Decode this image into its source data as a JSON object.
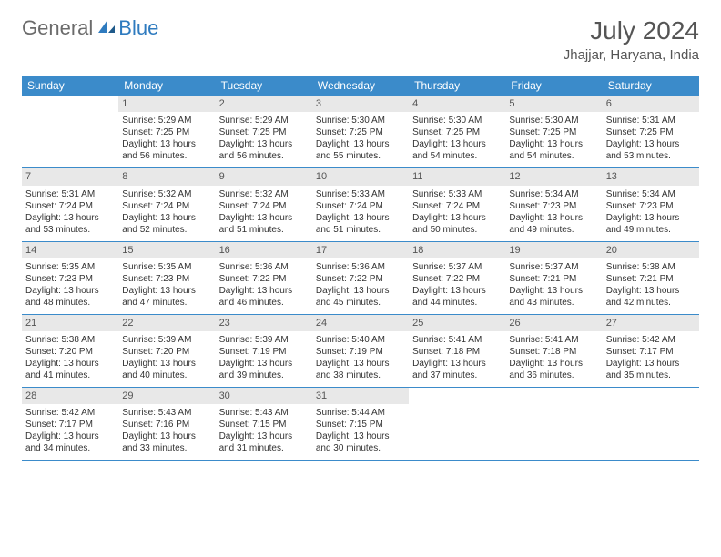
{
  "logo": {
    "general": "General",
    "blue": "Blue"
  },
  "title": "July 2024",
  "location": "Jhajjar, Haryana, India",
  "day_headers": [
    "Sunday",
    "Monday",
    "Tuesday",
    "Wednesday",
    "Thursday",
    "Friday",
    "Saturday"
  ],
  "colors": {
    "header_bg": "#3b8bca",
    "header_fg": "#ffffff",
    "daynum_bg": "#e8e8e8",
    "border": "#3b8bca",
    "logo_gray": "#6b6b6b",
    "logo_blue": "#2f7bbf"
  },
  "weeks": [
    [
      {
        "n": "",
        "sr": "",
        "ss": "",
        "dl": ""
      },
      {
        "n": "1",
        "sr": "Sunrise: 5:29 AM",
        "ss": "Sunset: 7:25 PM",
        "dl": "Daylight: 13 hours and 56 minutes."
      },
      {
        "n": "2",
        "sr": "Sunrise: 5:29 AM",
        "ss": "Sunset: 7:25 PM",
        "dl": "Daylight: 13 hours and 56 minutes."
      },
      {
        "n": "3",
        "sr": "Sunrise: 5:30 AM",
        "ss": "Sunset: 7:25 PM",
        "dl": "Daylight: 13 hours and 55 minutes."
      },
      {
        "n": "4",
        "sr": "Sunrise: 5:30 AM",
        "ss": "Sunset: 7:25 PM",
        "dl": "Daylight: 13 hours and 54 minutes."
      },
      {
        "n": "5",
        "sr": "Sunrise: 5:30 AM",
        "ss": "Sunset: 7:25 PM",
        "dl": "Daylight: 13 hours and 54 minutes."
      },
      {
        "n": "6",
        "sr": "Sunrise: 5:31 AM",
        "ss": "Sunset: 7:25 PM",
        "dl": "Daylight: 13 hours and 53 minutes."
      }
    ],
    [
      {
        "n": "7",
        "sr": "Sunrise: 5:31 AM",
        "ss": "Sunset: 7:24 PM",
        "dl": "Daylight: 13 hours and 53 minutes."
      },
      {
        "n": "8",
        "sr": "Sunrise: 5:32 AM",
        "ss": "Sunset: 7:24 PM",
        "dl": "Daylight: 13 hours and 52 minutes."
      },
      {
        "n": "9",
        "sr": "Sunrise: 5:32 AM",
        "ss": "Sunset: 7:24 PM",
        "dl": "Daylight: 13 hours and 51 minutes."
      },
      {
        "n": "10",
        "sr": "Sunrise: 5:33 AM",
        "ss": "Sunset: 7:24 PM",
        "dl": "Daylight: 13 hours and 51 minutes."
      },
      {
        "n": "11",
        "sr": "Sunrise: 5:33 AM",
        "ss": "Sunset: 7:24 PM",
        "dl": "Daylight: 13 hours and 50 minutes."
      },
      {
        "n": "12",
        "sr": "Sunrise: 5:34 AM",
        "ss": "Sunset: 7:23 PM",
        "dl": "Daylight: 13 hours and 49 minutes."
      },
      {
        "n": "13",
        "sr": "Sunrise: 5:34 AM",
        "ss": "Sunset: 7:23 PM",
        "dl": "Daylight: 13 hours and 49 minutes."
      }
    ],
    [
      {
        "n": "14",
        "sr": "Sunrise: 5:35 AM",
        "ss": "Sunset: 7:23 PM",
        "dl": "Daylight: 13 hours and 48 minutes."
      },
      {
        "n": "15",
        "sr": "Sunrise: 5:35 AM",
        "ss": "Sunset: 7:23 PM",
        "dl": "Daylight: 13 hours and 47 minutes."
      },
      {
        "n": "16",
        "sr": "Sunrise: 5:36 AM",
        "ss": "Sunset: 7:22 PM",
        "dl": "Daylight: 13 hours and 46 minutes."
      },
      {
        "n": "17",
        "sr": "Sunrise: 5:36 AM",
        "ss": "Sunset: 7:22 PM",
        "dl": "Daylight: 13 hours and 45 minutes."
      },
      {
        "n": "18",
        "sr": "Sunrise: 5:37 AM",
        "ss": "Sunset: 7:22 PM",
        "dl": "Daylight: 13 hours and 44 minutes."
      },
      {
        "n": "19",
        "sr": "Sunrise: 5:37 AM",
        "ss": "Sunset: 7:21 PM",
        "dl": "Daylight: 13 hours and 43 minutes."
      },
      {
        "n": "20",
        "sr": "Sunrise: 5:38 AM",
        "ss": "Sunset: 7:21 PM",
        "dl": "Daylight: 13 hours and 42 minutes."
      }
    ],
    [
      {
        "n": "21",
        "sr": "Sunrise: 5:38 AM",
        "ss": "Sunset: 7:20 PM",
        "dl": "Daylight: 13 hours and 41 minutes."
      },
      {
        "n": "22",
        "sr": "Sunrise: 5:39 AM",
        "ss": "Sunset: 7:20 PM",
        "dl": "Daylight: 13 hours and 40 minutes."
      },
      {
        "n": "23",
        "sr": "Sunrise: 5:39 AM",
        "ss": "Sunset: 7:19 PM",
        "dl": "Daylight: 13 hours and 39 minutes."
      },
      {
        "n": "24",
        "sr": "Sunrise: 5:40 AM",
        "ss": "Sunset: 7:19 PM",
        "dl": "Daylight: 13 hours and 38 minutes."
      },
      {
        "n": "25",
        "sr": "Sunrise: 5:41 AM",
        "ss": "Sunset: 7:18 PM",
        "dl": "Daylight: 13 hours and 37 minutes."
      },
      {
        "n": "26",
        "sr": "Sunrise: 5:41 AM",
        "ss": "Sunset: 7:18 PM",
        "dl": "Daylight: 13 hours and 36 minutes."
      },
      {
        "n": "27",
        "sr": "Sunrise: 5:42 AM",
        "ss": "Sunset: 7:17 PM",
        "dl": "Daylight: 13 hours and 35 minutes."
      }
    ],
    [
      {
        "n": "28",
        "sr": "Sunrise: 5:42 AM",
        "ss": "Sunset: 7:17 PM",
        "dl": "Daylight: 13 hours and 34 minutes."
      },
      {
        "n": "29",
        "sr": "Sunrise: 5:43 AM",
        "ss": "Sunset: 7:16 PM",
        "dl": "Daylight: 13 hours and 33 minutes."
      },
      {
        "n": "30",
        "sr": "Sunrise: 5:43 AM",
        "ss": "Sunset: 7:15 PM",
        "dl": "Daylight: 13 hours and 31 minutes."
      },
      {
        "n": "31",
        "sr": "Sunrise: 5:44 AM",
        "ss": "Sunset: 7:15 PM",
        "dl": "Daylight: 13 hours and 30 minutes."
      },
      {
        "n": "",
        "sr": "",
        "ss": "",
        "dl": ""
      },
      {
        "n": "",
        "sr": "",
        "ss": "",
        "dl": ""
      },
      {
        "n": "",
        "sr": "",
        "ss": "",
        "dl": ""
      }
    ]
  ]
}
